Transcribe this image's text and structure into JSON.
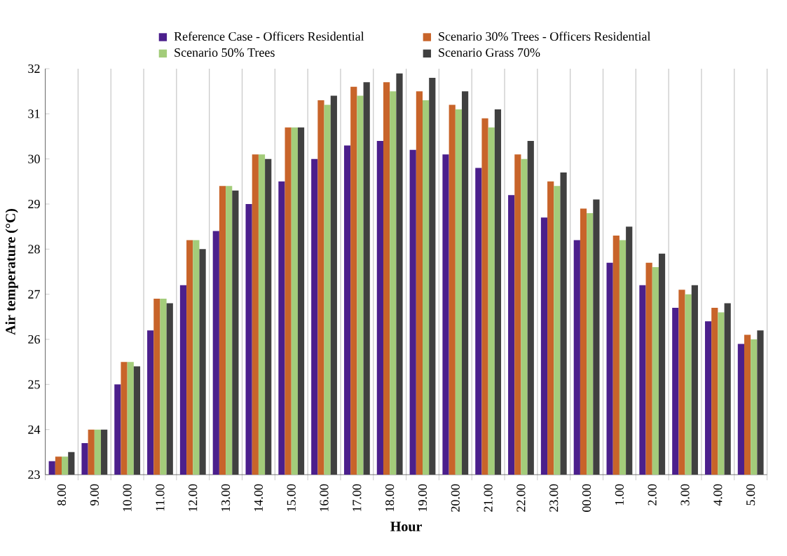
{
  "chart_data": {
    "type": "bar",
    "xlabel": "Hour",
    "ylabel": "Air temperature (°C)",
    "categories": [
      "8.00",
      "9.00",
      "10.00",
      "11.00",
      "12.00",
      "13.00",
      "14.00",
      "15.00",
      "16.00",
      "17.00",
      "18.00",
      "19.00",
      "20.00",
      "21.00",
      "22.00",
      "23.00",
      "00.00",
      "1.00",
      "2.00",
      "3.00",
      "4.00",
      "5.00"
    ],
    "series": [
      {
        "name": "Reference Case - Officers Residential",
        "color": "#4b1f8c",
        "values": [
          23.3,
          23.7,
          25.0,
          26.2,
          27.2,
          28.4,
          29.0,
          29.5,
          30.0,
          30.3,
          30.4,
          30.2,
          30.1,
          29.8,
          29.2,
          28.7,
          28.2,
          27.7,
          27.2,
          26.7,
          26.4,
          25.9
        ]
      },
      {
        "name": "Scenario 30% Trees - Officers Residential",
        "color": "#c8642a",
        "values": [
          23.4,
          24.0,
          25.5,
          26.9,
          28.2,
          29.4,
          30.1,
          30.7,
          31.3,
          31.6,
          31.7,
          31.5,
          31.2,
          30.9,
          30.1,
          29.5,
          28.9,
          28.3,
          27.7,
          27.1,
          26.7,
          26.1
        ]
      },
      {
        "name": "Scenario 50% Trees",
        "color": "#a3cc7a",
        "values": [
          23.4,
          24.0,
          25.5,
          26.9,
          28.2,
          29.4,
          30.1,
          30.7,
          31.2,
          31.4,
          31.5,
          31.3,
          31.1,
          30.7,
          30.0,
          29.4,
          28.8,
          28.2,
          27.6,
          27.0,
          26.6,
          26.0
        ]
      },
      {
        "name": "Scenario Grass 70%",
        "color": "#404040",
        "values": [
          23.5,
          24.0,
          25.4,
          26.8,
          28.0,
          29.3,
          30.0,
          30.7,
          31.4,
          31.7,
          31.9,
          31.8,
          31.5,
          31.1,
          30.4,
          29.7,
          29.1,
          28.5,
          27.9,
          27.2,
          26.8,
          26.2
        ]
      }
    ],
    "ylim": [
      23,
      32
    ],
    "yticks": [
      23,
      24,
      25,
      26,
      27,
      28,
      29,
      30,
      31,
      32
    ],
    "grid": "x",
    "legend": "top"
  }
}
